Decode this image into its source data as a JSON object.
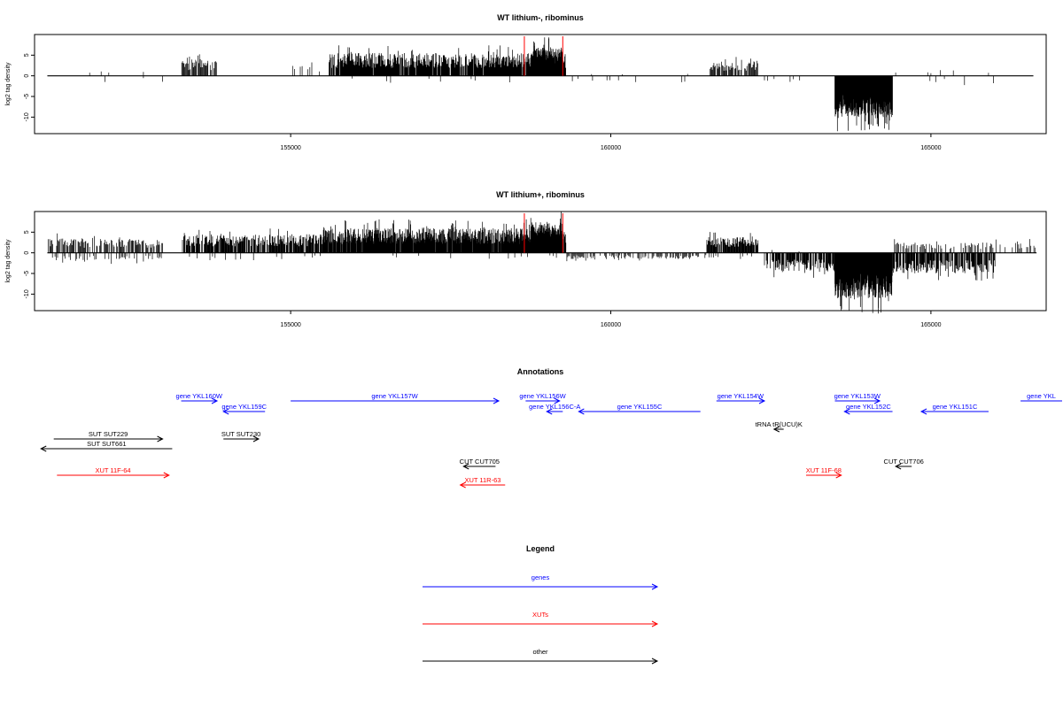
{
  "chart_data": [
    {
      "type": "bar",
      "title": "WT lithium-, ribominus",
      "xlabel": "",
      "ylabel": "log2 tag density",
      "xlim": [
        151000,
        166800
      ],
      "ylim": [
        -14,
        10
      ],
      "x_ticks": [
        155000,
        160000,
        165000
      ],
      "y_ticks": [
        5,
        0,
        -5,
        -10
      ],
      "grid": false,
      "markers": [
        158650,
        159250
      ],
      "marker_color": "#ff0000",
      "segments": [
        {
          "start": 151200,
          "end": 151800,
          "sign": 1,
          "amp": 1.5,
          "density": 0.15,
          "every": 60
        },
        {
          "start": 151800,
          "end": 153000,
          "sign": 1,
          "amp": 1.2,
          "density": 0.12,
          "every": 60
        },
        {
          "start": 151800,
          "end": 153000,
          "sign": -1,
          "amp": 1.5,
          "density": 0.12,
          "every": 60
        },
        {
          "start": 153300,
          "end": 153850,
          "sign": 1,
          "amp": 4.0,
          "density": 0.9,
          "every": 12
        },
        {
          "start": 153300,
          "end": 154100,
          "sign": -1,
          "amp": 1.5,
          "density": 0.12,
          "every": 50
        },
        {
          "start": 154100,
          "end": 154250,
          "sign": 1,
          "amp": 2.0,
          "density": 0.3,
          "every": 40
        },
        {
          "start": 155000,
          "end": 155600,
          "sign": 1,
          "amp": 2.5,
          "density": 0.3,
          "every": 30
        },
        {
          "start": 155600,
          "end": 159300,
          "sign": 1,
          "amp": 5.5,
          "density": 0.95,
          "every": 8
        },
        {
          "start": 155600,
          "end": 159300,
          "sign": -1,
          "amp": 1.5,
          "density": 0.1,
          "every": 60
        },
        {
          "start": 158750,
          "end": 159250,
          "sign": 1,
          "amp": 7.0,
          "density": 1.0,
          "every": 4
        },
        {
          "start": 159400,
          "end": 161200,
          "sign": -1,
          "amp": 1.8,
          "density": 0.25,
          "every": 45
        },
        {
          "start": 159400,
          "end": 161200,
          "sign": 1,
          "amp": 0.8,
          "density": 0.1,
          "every": 60
        },
        {
          "start": 161550,
          "end": 162300,
          "sign": 1,
          "amp": 3.5,
          "density": 0.85,
          "every": 12
        },
        {
          "start": 162300,
          "end": 163500,
          "sign": -1,
          "amp": 1.6,
          "density": 0.2,
          "every": 50
        },
        {
          "start": 163500,
          "end": 164400,
          "sign": -1,
          "amp": 10.0,
          "density": 1.0,
          "every": 3
        },
        {
          "start": 164400,
          "end": 166000,
          "sign": 1,
          "amp": 1.5,
          "density": 0.18,
          "every": 50
        },
        {
          "start": 164400,
          "end": 166000,
          "sign": -1,
          "amp": 2.0,
          "density": 0.22,
          "every": 45
        }
      ]
    },
    {
      "type": "bar",
      "title": "WT lithium+, ribominus",
      "xlabel": "",
      "ylabel": "log2 tag density",
      "xlim": [
        151000,
        166800
      ],
      "ylim": [
        -14,
        10
      ],
      "x_ticks": [
        155000,
        160000,
        165000
      ],
      "y_ticks": [
        5,
        0,
        -5,
        -10
      ],
      "grid": false,
      "markers": [
        158650,
        159250
      ],
      "marker_color": "#ff0000",
      "segments": [
        {
          "start": 151200,
          "end": 153000,
          "sign": 1,
          "amp": 3.5,
          "density": 0.7,
          "every": 12
        },
        {
          "start": 151200,
          "end": 153000,
          "sign": -1,
          "amp": 2.0,
          "density": 0.45,
          "every": 20
        },
        {
          "start": 153300,
          "end": 155500,
          "sign": 1,
          "amp": 4.5,
          "density": 0.85,
          "every": 10
        },
        {
          "start": 153300,
          "end": 155500,
          "sign": -1,
          "amp": 1.8,
          "density": 0.25,
          "every": 40
        },
        {
          "start": 155500,
          "end": 159300,
          "sign": 1,
          "amp": 6.0,
          "density": 0.95,
          "every": 6
        },
        {
          "start": 155500,
          "end": 159300,
          "sign": -1,
          "amp": 1.5,
          "density": 0.15,
          "every": 50
        },
        {
          "start": 158750,
          "end": 159250,
          "sign": 1,
          "amp": 7.5,
          "density": 1.0,
          "every": 4
        },
        {
          "start": 159300,
          "end": 161500,
          "sign": -1,
          "amp": 1.5,
          "density": 0.6,
          "every": 14
        },
        {
          "start": 161500,
          "end": 162300,
          "sign": 1,
          "amp": 4.0,
          "density": 0.85,
          "every": 10
        },
        {
          "start": 161500,
          "end": 162300,
          "sign": -1,
          "amp": 1.2,
          "density": 0.3,
          "every": 35
        },
        {
          "start": 162400,
          "end": 163500,
          "sign": -1,
          "amp": 4.5,
          "density": 0.8,
          "every": 10
        },
        {
          "start": 162400,
          "end": 163500,
          "sign": 1,
          "amp": 1.0,
          "density": 0.1,
          "every": 60
        },
        {
          "start": 163500,
          "end": 164400,
          "sign": -1,
          "amp": 11.0,
          "density": 1.0,
          "every": 3
        },
        {
          "start": 164400,
          "end": 166650,
          "sign": 1,
          "amp": 2.5,
          "density": 0.5,
          "every": 16
        },
        {
          "start": 164400,
          "end": 166000,
          "sign": -1,
          "amp": 5.0,
          "density": 0.8,
          "every": 10
        }
      ]
    }
  ],
  "annotations": {
    "title": "Annotations",
    "xlim": [
      151000,
      166800
    ],
    "items": [
      {
        "label": "gene YKL160W",
        "start": 153290,
        "end": 153850,
        "row": 0,
        "strand": "+",
        "kind": "gene"
      },
      {
        "label": "gene YKL159C",
        "start": 153950,
        "end": 154600,
        "row": 1,
        "strand": "-",
        "kind": "gene"
      },
      {
        "label": "gene YKL157W",
        "start": 155000,
        "end": 158250,
        "row": 0,
        "strand": "+",
        "kind": "gene"
      },
      {
        "label": "gene YKL156W",
        "start": 158670,
        "end": 159200,
        "row": 0,
        "strand": "+",
        "kind": "gene"
      },
      {
        "label": "gene YKL156C-A",
        "start": 159000,
        "end": 159250,
        "row": 1,
        "strand": "-",
        "kind": "gene"
      },
      {
        "label": "gene YKL155C",
        "start": 159500,
        "end": 161400,
        "row": 1,
        "strand": "-",
        "kind": "gene"
      },
      {
        "label": "gene YKL154W",
        "start": 161650,
        "end": 162400,
        "row": 0,
        "strand": "+",
        "kind": "gene"
      },
      {
        "label": "gene YKL153W",
        "start": 163500,
        "end": 164200,
        "row": 0,
        "strand": "+",
        "kind": "gene"
      },
      {
        "label": "gene YKL152C",
        "start": 163650,
        "end": 164400,
        "row": 1,
        "strand": "-",
        "kind": "gene"
      },
      {
        "label": "gene YKL151C",
        "start": 164850,
        "end": 165900,
        "row": 1,
        "strand": "-",
        "kind": "gene"
      },
      {
        "label": "gene YKL",
        "start": 166400,
        "end": 167200,
        "row": 0,
        "strand": "+",
        "kind": "gene"
      },
      {
        "label": "tRNA tR(UCU)K",
        "start": 162550,
        "end": 162700,
        "row": 2,
        "strand": "-",
        "kind": "other"
      },
      {
        "label": "SUT SUT229",
        "start": 151300,
        "end": 153000,
        "row": 3,
        "strand": "+",
        "kind": "other"
      },
      {
        "label": "SUT SUT661",
        "start": 151100,
        "end": 153150,
        "row": 4,
        "strand": "-",
        "kind": "other"
      },
      {
        "label": "SUT SUT230",
        "start": 153950,
        "end": 154500,
        "row": 3,
        "strand": "+",
        "kind": "other"
      },
      {
        "label": "CUT CUT705",
        "start": 157700,
        "end": 158200,
        "row": 5,
        "strand": "-",
        "kind": "other"
      },
      {
        "label": "CUT CUT706",
        "start": 164450,
        "end": 164700,
        "row": 5,
        "strand": "-",
        "kind": "other"
      },
      {
        "label": "XUT 11F-64",
        "start": 151350,
        "end": 153100,
        "row": 6,
        "strand": "+",
        "kind": "xut"
      },
      {
        "label": "XUT 11R-63",
        "start": 157650,
        "end": 158350,
        "row": 7,
        "strand": "-",
        "kind": "xut"
      },
      {
        "label": "XUT 11F-68",
        "start": 163050,
        "end": 163600,
        "row": 6,
        "strand": "+",
        "kind": "xut"
      }
    ]
  },
  "legend": {
    "title": "Legend",
    "entries": [
      {
        "label": "genes",
        "color": "#0000ff"
      },
      {
        "label": "XUTs",
        "color": "#ff0000"
      },
      {
        "label": "other",
        "color": "#000000"
      }
    ]
  },
  "colors": {
    "gene": "#0000ff",
    "xut": "#ff0000",
    "other": "#000000"
  }
}
